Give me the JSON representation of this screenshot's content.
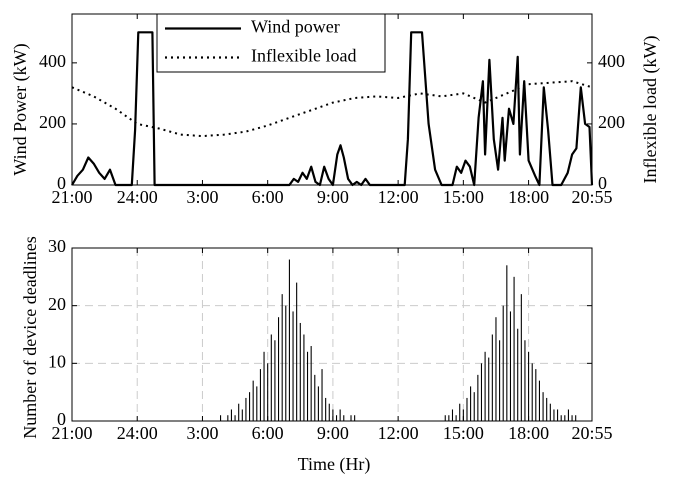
{
  "chart_data": [
    {
      "type": "line",
      "ylabel": "Wind Power (kW)",
      "y2label": "Inflexible load (kW)",
      "xlim": [
        0,
        23.917
      ],
      "ylim": [
        0,
        560
      ],
      "y2lim": [
        0,
        560
      ],
      "xticks": [
        {
          "value": 0,
          "label": "21:00"
        },
        {
          "value": 3,
          "label": "24:00"
        },
        {
          "value": 6,
          "label": "3:00"
        },
        {
          "value": 9,
          "label": "6:00"
        },
        {
          "value": 12,
          "label": "9:00"
        },
        {
          "value": 15,
          "label": "12:00"
        },
        {
          "value": 18,
          "label": "15:00"
        },
        {
          "value": 21,
          "label": "18:00"
        },
        {
          "value": 23.917,
          "label": "20:55"
        }
      ],
      "yticks": [
        0,
        200,
        400
      ],
      "y2ticks": [
        0,
        200,
        400
      ],
      "grid": false,
      "legend": "top",
      "series": [
        {
          "name": "Wind power",
          "color": "#000000",
          "style": "solid",
          "x": [
            0,
            0.25,
            0.5,
            0.75,
            1.0,
            1.25,
            1.5,
            1.75,
            2.0,
            2.75,
            2.9,
            3.05,
            3.7,
            3.8,
            10.0,
            10.2,
            10.4,
            10.6,
            10.8,
            11.0,
            11.2,
            11.4,
            11.6,
            11.8,
            12.0,
            12.2,
            12.35,
            12.5,
            12.7,
            12.9,
            13.1,
            13.3,
            13.5,
            13.7,
            14.0,
            15.3,
            15.45,
            15.6,
            16.1,
            16.4,
            16.7,
            17.0,
            17.5,
            17.7,
            17.9,
            18.1,
            18.3,
            18.5,
            18.7,
            18.9,
            19.0,
            19.2,
            19.4,
            19.6,
            19.8,
            19.9,
            20.1,
            20.3,
            20.5,
            20.6,
            20.8,
            21.0,
            21.3,
            21.5,
            21.7,
            21.9,
            22.1,
            22.5,
            22.8,
            23.0,
            23.2,
            23.4,
            23.6,
            23.8,
            23.917
          ],
          "values": [
            0,
            30,
            50,
            90,
            70,
            40,
            20,
            50,
            0,
            0,
            180,
            500,
            500,
            0,
            0,
            20,
            10,
            40,
            20,
            60,
            10,
            0,
            60,
            20,
            0,
            100,
            130,
            90,
            20,
            0,
            10,
            0,
            20,
            0,
            0,
            0,
            150,
            500,
            500,
            200,
            50,
            0,
            0,
            60,
            40,
            80,
            60,
            0,
            220,
            340,
            100,
            410,
            150,
            50,
            220,
            80,
            250,
            200,
            420,
            100,
            340,
            80,
            30,
            0,
            320,
            180,
            0,
            0,
            40,
            100,
            120,
            320,
            200,
            190,
            0
          ]
        },
        {
          "name": "Inflexible load",
          "color": "#000000",
          "style": "dotted",
          "axis": "y2",
          "x": [
            0,
            1,
            2,
            3,
            4,
            5,
            6,
            7,
            8,
            9,
            10,
            11,
            12,
            13,
            14,
            15,
            16,
            17,
            18,
            19,
            20,
            21,
            22,
            23,
            23.917
          ],
          "values": [
            320,
            290,
            250,
            200,
            185,
            165,
            160,
            165,
            175,
            195,
            220,
            245,
            270,
            285,
            290,
            285,
            300,
            290,
            300,
            270,
            300,
            330,
            335,
            340,
            320
          ]
        }
      ]
    },
    {
      "type": "bar",
      "ylabel": "Number of device deadlines",
      "xlabel": "Time (Hr)",
      "xlim": [
        0,
        23.917
      ],
      "ylim": [
        0,
        30
      ],
      "xticks": [
        {
          "value": 0,
          "label": "21:00"
        },
        {
          "value": 3,
          "label": "24:00"
        },
        {
          "value": 6,
          "label": "3:00"
        },
        {
          "value": 9,
          "label": "6:00"
        },
        {
          "value": 12,
          "label": "9:00"
        },
        {
          "value": 15,
          "label": "12:00"
        },
        {
          "value": 18,
          "label": "15:00"
        },
        {
          "value": 21,
          "label": "18:00"
        },
        {
          "value": 23.917,
          "label": "20:55"
        }
      ],
      "yticks": [
        0,
        10,
        20,
        30
      ],
      "grid": true,
      "color": "#000000",
      "x": [
        6.833,
        7,
        7.167,
        7.333,
        7.5,
        7.667,
        7.833,
        8,
        8.167,
        8.333,
        8.5,
        8.667,
        8.833,
        9,
        9.167,
        9.333,
        9.5,
        9.667,
        9.833,
        10,
        10.167,
        10.333,
        10.5,
        10.667,
        10.833,
        11,
        11.167,
        11.333,
        11.5,
        11.667,
        11.833,
        12,
        12.167,
        12.333,
        12.5,
        12.667,
        12.833,
        13,
        17.167,
        17.333,
        17.5,
        17.667,
        17.833,
        18,
        18.167,
        18.333,
        18.5,
        18.667,
        18.833,
        19,
        19.167,
        19.333,
        19.5,
        19.667,
        19.833,
        20,
        20.167,
        20.333,
        20.5,
        20.667,
        20.833,
        21,
        21.167,
        21.333,
        21.5,
        21.667,
        21.833,
        22,
        22.167,
        22.333,
        22.5,
        22.667,
        22.833,
        23,
        23.167
      ],
      "values": [
        1,
        0,
        1,
        2,
        1,
        3,
        2,
        4,
        5,
        7,
        6,
        9,
        12,
        10,
        15,
        14,
        18,
        22,
        20,
        28,
        19,
        24,
        17,
        15,
        12,
        13,
        8,
        6,
        9,
        4,
        3,
        2,
        1,
        2,
        1,
        0,
        1,
        1,
        1,
        1,
        2,
        1,
        3,
        2,
        4,
        6,
        5,
        8,
        10,
        12,
        11,
        15,
        18,
        14,
        20,
        27,
        19,
        25,
        16,
        22,
        14,
        12,
        10,
        9,
        7,
        5,
        4,
        3,
        2,
        2,
        1,
        1,
        2,
        1,
        1
      ]
    }
  ]
}
